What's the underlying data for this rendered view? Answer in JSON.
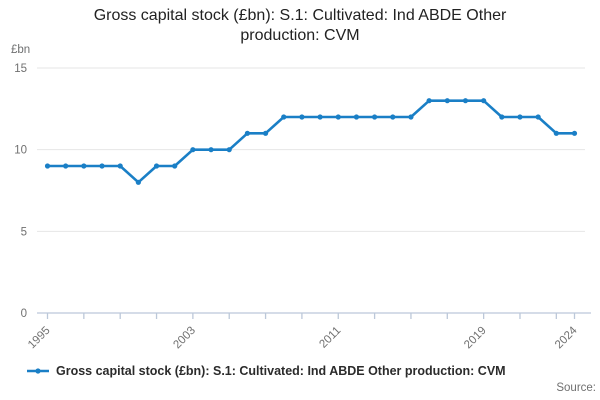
{
  "header": {
    "title_lines": [
      "Gross capital stock (£bn): S.1: Cultivated: Ind ABDE Other",
      "production: CVM"
    ]
  },
  "chart_data": {
    "type": "line",
    "title": "Gross capital stock (£bn): S.1: Cultivated: Ind ABDE Other production: CVM",
    "unit": "£bn",
    "x": [
      1995,
      1996,
      1997,
      1998,
      1999,
      2000,
      2001,
      2002,
      2003,
      2004,
      2005,
      2006,
      2007,
      2008,
      2009,
      2010,
      2011,
      2012,
      2013,
      2014,
      2015,
      2016,
      2017,
      2018,
      2019,
      2020,
      2021,
      2022,
      2023,
      2024
    ],
    "series": [
      {
        "name": "Gross capital stock (£bn): S.1: Cultivated: Ind ABDE Other production: CVM",
        "color": "#1a7fc6",
        "values": [
          9,
          9,
          9,
          9,
          9,
          8,
          9,
          9,
          10,
          10,
          10,
          11,
          11,
          12,
          12,
          12,
          12,
          12,
          12,
          12,
          12,
          13,
          13,
          13,
          13,
          12,
          12,
          12,
          11,
          11
        ]
      }
    ],
    "ylim": [
      0,
      15
    ],
    "yticks": [
      0,
      5,
      10,
      15
    ],
    "x_axis_ticks": [
      1995,
      1997,
      1999,
      2001,
      2003,
      2005,
      2007,
      2009,
      2011,
      2013,
      2015,
      2017,
      2019,
      2021,
      2023,
      2024
    ],
    "x_axis_labels": [
      1995,
      2003,
      2011,
      2019,
      2024
    ],
    "grid": "horizontal",
    "legend_position": "bottom-left"
  },
  "legend": {
    "label": "Gross capital stock (£bn): S.1: Cultivated: Ind ABDE Other production: CVM"
  },
  "footer": {
    "source_label": "Source:"
  },
  "colors": {
    "line": "#1a7fc6",
    "grid": "#e6e6e6",
    "axis": "#bcc8d9",
    "tick_text": "#707070",
    "title_text": "#222222",
    "legend_text": "#2b2b2b",
    "background": "#ffffff"
  }
}
